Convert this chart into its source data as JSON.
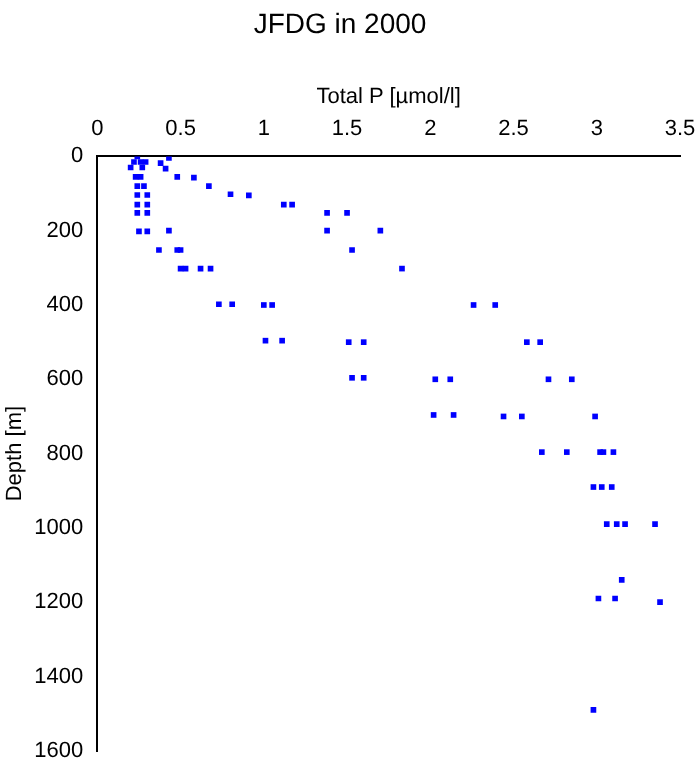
{
  "chart_data": {
    "type": "scatter",
    "title": "JFDG in 2000",
    "xlabel": "Total P [µmol/l]",
    "ylabel": "Depth [m]",
    "marker": "square",
    "grid": false,
    "legend": false,
    "xlim": [
      0,
      3.5
    ],
    "xticks": [
      0,
      0.5,
      1,
      1.5,
      2,
      2.5,
      3,
      3.5
    ],
    "ylim": [
      1600,
      0
    ],
    "yticks": [
      0,
      200,
      400,
      600,
      800,
      1000,
      1200,
      1400,
      1600
    ],
    "series": [
      {
        "color": "#0000ff",
        "x": [
          0.24,
          0.22,
          0.26,
          0.29,
          0.2,
          0.27,
          0.38,
          0.43,
          0.41,
          0.23,
          0.26,
          0.48,
          0.58,
          0.67,
          0.24,
          0.28,
          0.24,
          0.3,
          0.8,
          0.91,
          0.24,
          0.3,
          1.12,
          1.17,
          1.38,
          1.5,
          0.24,
          0.3,
          0.25,
          0.3,
          0.43,
          1.38,
          1.7,
          0.37,
          0.48,
          0.5,
          1.53,
          0.5,
          0.53,
          0.62,
          0.68,
          1.83,
          0.73,
          0.81,
          1,
          1.05,
          2.26,
          2.39,
          1.01,
          1.11,
          1.51,
          1.6,
          2.58,
          2.66,
          1.53,
          1.6,
          2.03,
          2.12,
          2.71,
          2.85,
          2.02,
          2.14,
          2.44,
          2.55,
          2.99,
          2.67,
          2.82,
          3.02,
          3.04,
          3.1,
          2.98,
          3.03,
          3.09,
          3.06,
          3.12,
          3.17,
          3.35,
          3.15,
          3.01,
          3.11,
          3.38,
          2.98
        ],
        "values": [
          0,
          15,
          15,
          15,
          30,
          30,
          18,
          4,
          33,
          55,
          55,
          55,
          57,
          80,
          80,
          80,
          104,
          104,
          102,
          105,
          130,
          130,
          130,
          130,
          152,
          152,
          152,
          152,
          202,
          202,
          200,
          200,
          200,
          252,
          252,
          252,
          252,
          302,
          302,
          302,
          302,
          302,
          398,
          398,
          400,
          400,
          400,
          400,
          496,
          496,
          500,
          500,
          500,
          500,
          596,
          596,
          600,
          600,
          600,
          600,
          696,
          696,
          700,
          700,
          700,
          796,
          796,
          796,
          796,
          796,
          890,
          890,
          890,
          990,
          990,
          990,
          990,
          1140,
          1190,
          1190,
          1200,
          1490
        ]
      }
    ]
  }
}
